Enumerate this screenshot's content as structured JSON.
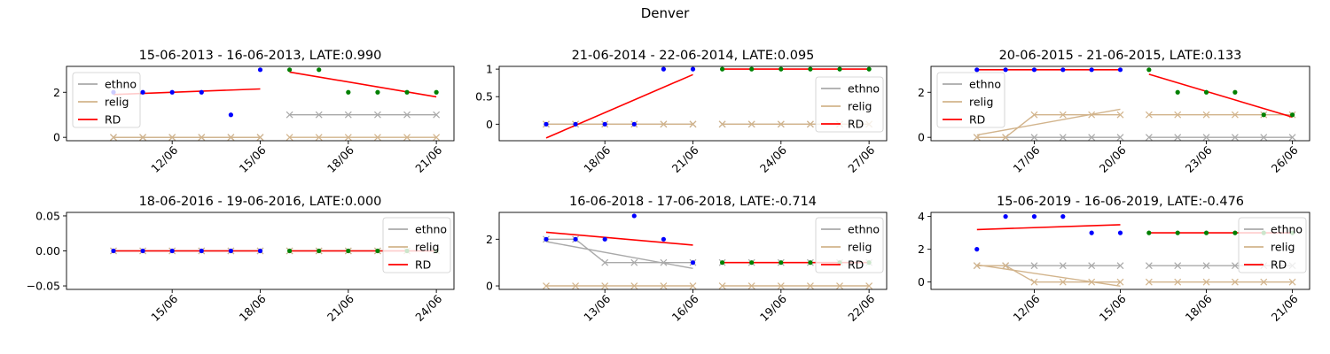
{
  "suptitle": "Denver",
  "colors": {
    "ethno": "#a9a9a9",
    "relig": "#d2b48c",
    "rd": "#ff0000",
    "pre": "#0000ff",
    "post": "#008000"
  },
  "chart_data": [
    {
      "type": "line",
      "title": "15-06-2013 - 16-06-2013, LATE:0.990",
      "xrange": [
        "2013-06-09",
        "2013-06-21"
      ],
      "ylim": [
        -0.15,
        3.15
      ],
      "yticks": [
        0,
        2
      ],
      "xticks": [
        {
          "date": "2013-06-12",
          "label": "12/06"
        },
        {
          "date": "2013-06-15",
          "label": "15/06"
        },
        {
          "date": "2013-06-18",
          "label": "18/06"
        },
        {
          "date": "2013-06-21",
          "label": "21/06"
        }
      ],
      "legend": "top-left",
      "series": [
        {
          "name": "ethno",
          "x": [
            "2013-06-10",
            "2013-06-11",
            "2013-06-12",
            "2013-06-13",
            "2013-06-14",
            "2013-06-15"
          ],
          "values": [
            0,
            0,
            0,
            0,
            0,
            0
          ]
        },
        {
          "name": "ethno",
          "x": [
            "2013-06-16",
            "2013-06-17",
            "2013-06-18",
            "2013-06-19",
            "2013-06-20",
            "2013-06-21"
          ],
          "values": [
            1,
            1,
            1,
            1,
            1,
            1
          ]
        },
        {
          "name": "relig",
          "x": [
            "2013-06-10",
            "2013-06-11",
            "2013-06-12",
            "2013-06-13",
            "2013-06-14",
            "2013-06-15"
          ],
          "values": [
            0,
            0,
            0,
            0,
            0,
            0
          ]
        },
        {
          "name": "relig",
          "x": [
            "2013-06-16",
            "2013-06-17",
            "2013-06-18",
            "2013-06-19",
            "2013-06-20",
            "2013-06-21"
          ],
          "values": [
            0,
            0,
            0,
            0,
            0,
            0
          ]
        },
        {
          "name": "RD",
          "x": [
            "2013-06-10",
            "2013-06-15"
          ],
          "values": [
            1.9,
            2.15
          ]
        },
        {
          "name": "RD",
          "x": [
            "2013-06-16",
            "2013-06-21"
          ],
          "values": [
            2.9,
            1.8
          ]
        }
      ],
      "points_pre": {
        "x": [
          "2013-06-10",
          "2013-06-11",
          "2013-06-12",
          "2013-06-13",
          "2013-06-14",
          "2013-06-15"
        ],
        "values": [
          2,
          2,
          2,
          2,
          1,
          3
        ]
      },
      "points_post": {
        "x": [
          "2013-06-16",
          "2013-06-17",
          "2013-06-18",
          "2013-06-19",
          "2013-06-20",
          "2013-06-21"
        ],
        "values": [
          3,
          3,
          2,
          2,
          2,
          2
        ]
      }
    },
    {
      "type": "line",
      "title": "21-06-2014 - 22-06-2014, LATE:0.095",
      "xrange": [
        "2014-06-15",
        "2014-06-27"
      ],
      "ylim": [
        -0.3,
        1.05
      ],
      "yticks": [
        0.0,
        0.5,
        1.0
      ],
      "xticks": [
        {
          "date": "2014-06-18",
          "label": "18/06"
        },
        {
          "date": "2014-06-21",
          "label": "21/06"
        },
        {
          "date": "2014-06-24",
          "label": "24/06"
        },
        {
          "date": "2014-06-27",
          "label": "27/06"
        }
      ],
      "legend": "bottom-right",
      "series": [
        {
          "name": "ethno",
          "x": [
            "2014-06-16",
            "2014-06-17",
            "2014-06-18",
            "2014-06-19",
            "2014-06-20",
            "2014-06-21"
          ],
          "values": [
            0,
            0,
            0,
            0,
            0,
            0
          ]
        },
        {
          "name": "ethno",
          "x": [
            "2014-06-22",
            "2014-06-23",
            "2014-06-24",
            "2014-06-25",
            "2014-06-26",
            "2014-06-27"
          ],
          "values": [
            0,
            0,
            0,
            0,
            0,
            0
          ]
        },
        {
          "name": "relig",
          "x": [
            "2014-06-16",
            "2014-06-17",
            "2014-06-18",
            "2014-06-19",
            "2014-06-20",
            "2014-06-21"
          ],
          "values": [
            0,
            0,
            0,
            0,
            0,
            0
          ]
        },
        {
          "name": "relig",
          "x": [
            "2014-06-22",
            "2014-06-23",
            "2014-06-24",
            "2014-06-25",
            "2014-06-26",
            "2014-06-27"
          ],
          "values": [
            0,
            0,
            0,
            0,
            0,
            0
          ]
        },
        {
          "name": "RD",
          "x": [
            "2014-06-16",
            "2014-06-21"
          ],
          "values": [
            -0.25,
            0.9
          ]
        },
        {
          "name": "RD",
          "x": [
            "2014-06-22",
            "2014-06-27"
          ],
          "values": [
            1.0,
            1.0
          ]
        }
      ],
      "points_pre": {
        "x": [
          "2014-06-16",
          "2014-06-17",
          "2014-06-18",
          "2014-06-19",
          "2014-06-20",
          "2014-06-21"
        ],
        "values": [
          0,
          0,
          0,
          0,
          1,
          1
        ]
      },
      "points_post": {
        "x": [
          "2014-06-22",
          "2014-06-23",
          "2014-06-24",
          "2014-06-25",
          "2014-06-26",
          "2014-06-27"
        ],
        "values": [
          1,
          1,
          1,
          1,
          1,
          1
        ]
      }
    },
    {
      "type": "line",
      "title": "20-06-2015 - 21-06-2015, LATE:0.133",
      "xrange": [
        "2015-06-14",
        "2015-06-26"
      ],
      "ylim": [
        -0.15,
        3.15
      ],
      "yticks": [
        0,
        2
      ],
      "xticks": [
        {
          "date": "2015-06-17",
          "label": "17/06"
        },
        {
          "date": "2015-06-20",
          "label": "20/06"
        },
        {
          "date": "2015-06-23",
          "label": "23/06"
        },
        {
          "date": "2015-06-26",
          "label": "26/06"
        }
      ],
      "legend": "top-left",
      "series": [
        {
          "name": "ethno",
          "x": [
            "2015-06-15",
            "2015-06-16",
            "2015-06-17",
            "2015-06-18",
            "2015-06-19",
            "2015-06-20"
          ],
          "values": [
            0,
            0,
            0,
            0,
            0,
            0
          ]
        },
        {
          "name": "ethno",
          "x": [
            "2015-06-21",
            "2015-06-22",
            "2015-06-23",
            "2015-06-24",
            "2015-06-25",
            "2015-06-26"
          ],
          "values": [
            0,
            0,
            0,
            0,
            0,
            0
          ]
        },
        {
          "name": "relig",
          "x": [
            "2015-06-15",
            "2015-06-20"
          ],
          "values": [
            0.1,
            1.25
          ]
        },
        {
          "name": "relig",
          "x": [
            "2015-06-15",
            "2015-06-16",
            "2015-06-17",
            "2015-06-18",
            "2015-06-19",
            "2015-06-20"
          ],
          "values": [
            0,
            0,
            1,
            1,
            1,
            1
          ]
        },
        {
          "name": "relig",
          "x": [
            "2015-06-21",
            "2015-06-22",
            "2015-06-23",
            "2015-06-24",
            "2015-06-25",
            "2015-06-26"
          ],
          "values": [
            1,
            1,
            1,
            1,
            1,
            1
          ]
        },
        {
          "name": "RD",
          "x": [
            "2015-06-15",
            "2015-06-20"
          ],
          "values": [
            3.0,
            3.0
          ]
        },
        {
          "name": "RD",
          "x": [
            "2015-06-21",
            "2015-06-26"
          ],
          "values": [
            2.8,
            0.9
          ]
        }
      ],
      "points_pre": {
        "x": [
          "2015-06-15",
          "2015-06-16",
          "2015-06-17",
          "2015-06-18",
          "2015-06-19",
          "2015-06-20"
        ],
        "values": [
          3,
          3,
          3,
          3,
          3,
          3
        ]
      },
      "points_post": {
        "x": [
          "2015-06-21",
          "2015-06-22",
          "2015-06-23",
          "2015-06-24",
          "2015-06-25",
          "2015-06-26"
        ],
        "values": [
          3,
          2,
          2,
          2,
          1,
          1
        ]
      }
    },
    {
      "type": "line",
      "title": "18-06-2016 - 19-06-2016, LATE:0.000",
      "xrange": [
        "2016-06-12",
        "2016-06-24"
      ],
      "ylim": [
        -0.055,
        0.055
      ],
      "yticks": [
        -0.05,
        0.0,
        0.05
      ],
      "ytick_labels": [
        "−0.05",
        "0.00",
        "0.05"
      ],
      "xticks": [
        {
          "date": "2016-06-15",
          "label": "15/06"
        },
        {
          "date": "2016-06-18",
          "label": "18/06"
        },
        {
          "date": "2016-06-21",
          "label": "21/06"
        },
        {
          "date": "2016-06-24",
          "label": "24/06"
        }
      ],
      "legend": "top-right",
      "series": [
        {
          "name": "ethno",
          "x": [
            "2016-06-13",
            "2016-06-14",
            "2016-06-15",
            "2016-06-16",
            "2016-06-17",
            "2016-06-18"
          ],
          "values": [
            0,
            0,
            0,
            0,
            0,
            0
          ]
        },
        {
          "name": "ethno",
          "x": [
            "2016-06-19",
            "2016-06-20",
            "2016-06-21",
            "2016-06-22",
            "2016-06-23",
            "2016-06-24"
          ],
          "values": [
            0,
            0,
            0,
            0,
            0,
            0
          ]
        },
        {
          "name": "relig",
          "x": [
            "2016-06-13",
            "2016-06-14",
            "2016-06-15",
            "2016-06-16",
            "2016-06-17",
            "2016-06-18"
          ],
          "values": [
            0,
            0,
            0,
            0,
            0,
            0
          ]
        },
        {
          "name": "relig",
          "x": [
            "2016-06-19",
            "2016-06-20",
            "2016-06-21",
            "2016-06-22",
            "2016-06-23",
            "2016-06-24"
          ],
          "values": [
            0,
            0,
            0,
            0,
            0,
            0
          ]
        },
        {
          "name": "RD",
          "x": [
            "2016-06-13",
            "2016-06-18"
          ],
          "values": [
            0,
            0
          ]
        },
        {
          "name": "RD",
          "x": [
            "2016-06-19",
            "2016-06-24"
          ],
          "values": [
            0,
            0
          ]
        }
      ],
      "points_pre": {
        "x": [
          "2016-06-13",
          "2016-06-14",
          "2016-06-15",
          "2016-06-16",
          "2016-06-17",
          "2016-06-18"
        ],
        "values": [
          0,
          0,
          0,
          0,
          0,
          0
        ]
      },
      "points_post": {
        "x": [
          "2016-06-19",
          "2016-06-20",
          "2016-06-21",
          "2016-06-22",
          "2016-06-23",
          "2016-06-24"
        ],
        "values": [
          0,
          0,
          0,
          0,
          0,
          0
        ]
      }
    },
    {
      "type": "line",
      "title": "16-06-2018 - 17-06-2018, LATE:-0.714",
      "xrange": [
        "2018-06-10",
        "2018-06-22"
      ],
      "ylim": [
        -0.15,
        3.15
      ],
      "yticks": [
        0,
        2
      ],
      "xticks": [
        {
          "date": "2018-06-13",
          "label": "13/06"
        },
        {
          "date": "2018-06-16",
          "label": "16/06"
        },
        {
          "date": "2018-06-19",
          "label": "19/06"
        },
        {
          "date": "2018-06-22",
          "label": "22/06"
        }
      ],
      "legend": "top-right",
      "series": [
        {
          "name": "ethno",
          "x": [
            "2018-06-11",
            "2018-06-16"
          ],
          "values": [
            1.9,
            0.75
          ]
        },
        {
          "name": "ethno",
          "x": [
            "2018-06-11",
            "2018-06-12",
            "2018-06-13",
            "2018-06-14",
            "2018-06-15",
            "2018-06-16"
          ],
          "values": [
            2,
            2,
            1,
            1,
            1,
            1
          ]
        },
        {
          "name": "ethno",
          "x": [
            "2018-06-17",
            "2018-06-18",
            "2018-06-19",
            "2018-06-20",
            "2018-06-21",
            "2018-06-22"
          ],
          "values": [
            1,
            1,
            1,
            1,
            1,
            1
          ]
        },
        {
          "name": "relig",
          "x": [
            "2018-06-11",
            "2018-06-12",
            "2018-06-13",
            "2018-06-14",
            "2018-06-15",
            "2018-06-16"
          ],
          "values": [
            0,
            0,
            0,
            0,
            0,
            0
          ]
        },
        {
          "name": "relig",
          "x": [
            "2018-06-17",
            "2018-06-18",
            "2018-06-19",
            "2018-06-20",
            "2018-06-21",
            "2018-06-22"
          ],
          "values": [
            0,
            0,
            0,
            0,
            0,
            0
          ]
        },
        {
          "name": "RD",
          "x": [
            "2018-06-11",
            "2018-06-16"
          ],
          "values": [
            2.3,
            1.75
          ]
        },
        {
          "name": "RD",
          "x": [
            "2018-06-17",
            "2018-06-22"
          ],
          "values": [
            1.0,
            1.0
          ]
        }
      ],
      "points_pre": {
        "x": [
          "2018-06-11",
          "2018-06-12",
          "2018-06-13",
          "2018-06-14",
          "2018-06-15",
          "2018-06-16"
        ],
        "values": [
          2,
          2,
          2,
          3,
          2,
          1
        ]
      },
      "points_post": {
        "x": [
          "2018-06-17",
          "2018-06-18",
          "2018-06-19",
          "2018-06-20",
          "2018-06-21",
          "2018-06-22"
        ],
        "values": [
          1,
          1,
          1,
          1,
          1,
          1
        ]
      }
    },
    {
      "type": "line",
      "title": "15-06-2019 - 16-06-2019, LATE:-0.476",
      "xrange": [
        "2019-06-09",
        "2019-06-21"
      ],
      "ylim": [
        -0.45,
        4.25
      ],
      "yticks": [
        0,
        2,
        4
      ],
      "xticks": [
        {
          "date": "2019-06-12",
          "label": "12/06"
        },
        {
          "date": "2019-06-15",
          "label": "15/06"
        },
        {
          "date": "2019-06-18",
          "label": "18/06"
        },
        {
          "date": "2019-06-21",
          "label": "21/06"
        }
      ],
      "legend": "top-right",
      "series": [
        {
          "name": "ethno",
          "x": [
            "2019-06-10",
            "2019-06-11",
            "2019-06-12",
            "2019-06-13",
            "2019-06-14",
            "2019-06-15"
          ],
          "values": [
            1,
            1,
            1,
            1,
            1,
            1
          ]
        },
        {
          "name": "ethno",
          "x": [
            "2019-06-16",
            "2019-06-17",
            "2019-06-18",
            "2019-06-19",
            "2019-06-20",
            "2019-06-21"
          ],
          "values": [
            1,
            1,
            1,
            1,
            1,
            1
          ]
        },
        {
          "name": "relig",
          "x": [
            "2019-06-10",
            "2019-06-15"
          ],
          "values": [
            1.05,
            -0.25
          ]
        },
        {
          "name": "relig",
          "x": [
            "2019-06-10",
            "2019-06-11",
            "2019-06-12",
            "2019-06-13",
            "2019-06-14",
            "2019-06-15"
          ],
          "values": [
            1,
            1,
            0,
            0,
            0,
            0
          ]
        },
        {
          "name": "relig",
          "x": [
            "2019-06-16",
            "2019-06-17",
            "2019-06-18",
            "2019-06-19",
            "2019-06-20",
            "2019-06-21"
          ],
          "values": [
            0,
            0,
            0,
            0,
            0,
            0
          ]
        },
        {
          "name": "RD",
          "x": [
            "2019-06-10",
            "2019-06-15"
          ],
          "values": [
            3.2,
            3.5
          ]
        },
        {
          "name": "RD",
          "x": [
            "2019-06-16",
            "2019-06-21"
          ],
          "values": [
            3.0,
            3.0
          ]
        }
      ],
      "points_pre": {
        "x": [
          "2019-06-10",
          "2019-06-11",
          "2019-06-12",
          "2019-06-13",
          "2019-06-14",
          "2019-06-15"
        ],
        "values": [
          2,
          4,
          4,
          4,
          3,
          3
        ]
      },
      "points_post": {
        "x": [
          "2019-06-16",
          "2019-06-17",
          "2019-06-18",
          "2019-06-19",
          "2019-06-20",
          "2019-06-21"
        ],
        "values": [
          3,
          3,
          3,
          3,
          3,
          3
        ]
      }
    }
  ]
}
